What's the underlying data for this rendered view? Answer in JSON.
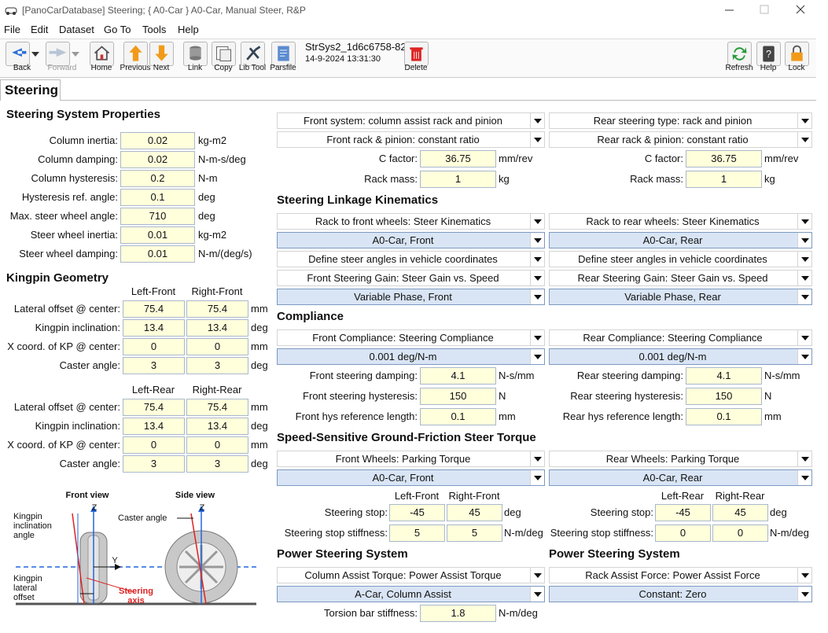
{
  "window": {
    "title": "[PanoCarDatabase] Steering; { A0-Car } A0-Car, Manual Steer, R&P"
  },
  "menu": [
    "File",
    "Edit",
    "Dataset",
    "Go To",
    "Tools",
    "Help"
  ],
  "toolbar": {
    "buttons": [
      "Back",
      "Forward",
      "Home",
      "Previous",
      "Next",
      "Link",
      "Copy",
      "Lib Tool",
      "Parsfile"
    ],
    "dataset_name": "StrSys2_1d6c6758-82",
    "dataset_date": "14-9-2024 13:31:30",
    "delete": "Delete",
    "right_buttons": [
      "Refresh",
      "Help",
      "Lock"
    ]
  },
  "tab": "Steering",
  "left": {
    "system_properties": {
      "title": "Steering System Properties",
      "rows": [
        {
          "label": "Column inertia:",
          "value": 0.02,
          "unit": "kg-m2"
        },
        {
          "label": "Column damping:",
          "value": 0.02,
          "unit": "N-m-s/deg"
        },
        {
          "label": "Column hysteresis:",
          "value": 0.2,
          "unit": "N-m"
        },
        {
          "label": "Hysteresis ref. angle:",
          "value": 0.1,
          "unit": "deg"
        },
        {
          "label": "Max. steer wheel angle:",
          "value": 710,
          "unit": "deg"
        },
        {
          "label": "Steer wheel inertia:",
          "value": 0.01,
          "unit": "kg-m2"
        },
        {
          "label": "Steer wheel damping:",
          "value": 0.01,
          "unit": "N-m/(deg/s)"
        }
      ]
    },
    "kingpin": {
      "title": "Kingpin Geometry",
      "groups": [
        {
          "headers": [
            "Left-Front",
            "Right-Front"
          ],
          "rows": [
            {
              "label": "Lateral offset @ center:",
              "values": [
                75.4,
                75.4
              ],
              "unit": "mm"
            },
            {
              "label": "Kingpin inclination:",
              "values": [
                13.4,
                13.4
              ],
              "unit": "deg"
            },
            {
              "label": "X coord. of KP @ center:",
              "values": [
                0,
                0
              ],
              "unit": "mm"
            },
            {
              "label": "Caster angle:",
              "values": [
                3,
                3
              ],
              "unit": "deg"
            }
          ]
        },
        {
          "headers": [
            "Left-Rear",
            "Right-Rear"
          ],
          "rows": [
            {
              "label": "Lateral offset @ center:",
              "values": [
                75.4,
                75.4
              ],
              "unit": "mm"
            },
            {
              "label": "Kingpin inclination:",
              "values": [
                13.4,
                13.4
              ],
              "unit": "deg"
            },
            {
              "label": "X coord. of KP @ center:",
              "values": [
                0,
                0
              ],
              "unit": "mm"
            },
            {
              "label": "Caster angle:",
              "values": [
                3,
                3
              ],
              "unit": "deg"
            }
          ]
        }
      ]
    },
    "diagram": {
      "front_view": "Front view",
      "side_view": "Side view",
      "inclination": "Kingpin inclination angle",
      "caster": "Caster angle",
      "offset": "Kingpin lateral offset",
      "axis": "Steering axis",
      "z_front": "Z",
      "z_side": "Z",
      "y_front": "Y"
    }
  },
  "right": {
    "sections": [
      {
        "front": {
          "items": [
            {
              "combo": "Front system: column assist rack and pinion"
            },
            {
              "combo": "Front rack & pinion: constant ratio"
            },
            {
              "label": "C factor:",
              "value": 36.75,
              "unit": "mm/rev"
            },
            {
              "label": "Rack mass:",
              "value": 1,
              "unit": "kg"
            }
          ]
        },
        "rear": {
          "items": [
            {
              "combo": "Rear steering type: rack and pinion"
            },
            {
              "combo": "Rear rack & pinion: constant ratio"
            },
            {
              "label": "C factor:",
              "value": 36.75,
              "unit": "mm/rev"
            },
            {
              "label": "Rack mass:",
              "value": 1,
              "unit": "kg"
            }
          ]
        }
      },
      {
        "front": {
          "title": "Steering Linkage Kinematics",
          "items": [
            {
              "combo": "Rack to front wheels: Steer Kinematics"
            },
            {
              "combo": "A0-Car, Front",
              "style": "highlight"
            },
            {
              "combo": "Define steer angles in vehicle coordinates"
            },
            {
              "combo": "Front Steering Gain: Steer Gain vs. Speed"
            },
            {
              "combo": "Variable Phase, Front",
              "style": "highlight"
            }
          ]
        },
        "rear": {
          "items": [
            {
              "combo": "Rack to rear wheels: Steer Kinematics"
            },
            {
              "combo": "A0-Car, Rear",
              "style": "highlight"
            },
            {
              "combo": "Define steer angles in vehicle coordinates"
            },
            {
              "combo": "Rear Steering Gain: Steer Gain vs. Speed"
            },
            {
              "combo": "Variable Phase, Rear",
              "style": "highlight"
            }
          ]
        }
      },
      {
        "front": {
          "title": "Compliance",
          "items": [
            {
              "combo": "Front Compliance: Steering Compliance"
            },
            {
              "combo": "0.001 deg/N-m",
              "style": "highlight"
            },
            {
              "label": "Front steering damping:",
              "value": 4.1,
              "unit": "N-s/mm"
            },
            {
              "label": "Front steering hysteresis:",
              "value": 150,
              "unit": "N"
            },
            {
              "label": "Front hys reference length:",
              "value": 0.1,
              "unit": "mm"
            }
          ]
        },
        "rear": {
          "items": [
            {
              "combo": "Rear Compliance: Steering Compliance"
            },
            {
              "combo": "0.001 deg/N-m",
              "style": "highlight"
            },
            {
              "label": "Rear steering damping:",
              "value": 4.1,
              "unit": "N-s/mm"
            },
            {
              "label": "Rear steering hysteresis:",
              "value": 150,
              "unit": "N"
            },
            {
              "label": "Rear hys reference length:",
              "value": 0.1,
              "unit": "mm"
            }
          ]
        }
      },
      {
        "front": {
          "title": "Speed-Sensitive Ground-Friction Steer Torque",
          "items": [
            {
              "combo": "Front Wheels: Parking Torque"
            },
            {
              "combo": "A0-Car, Front",
              "style": "highlight"
            },
            {
              "headers": [
                "Left-Front",
                "Right-Front"
              ]
            },
            {
              "label": "Steering stop:",
              "values": [
                -45,
                45
              ],
              "unit": "deg"
            },
            {
              "label": "Steering stop stiffness:",
              "values": [
                5,
                5
              ],
              "unit": "N-m/deg"
            }
          ]
        },
        "rear": {
          "items": [
            {
              "combo": "Rear Wheels: Parking Torque"
            },
            {
              "combo": "A0-Car, Rear",
              "style": "highlight"
            },
            {
              "headers": [
                "Left-Rear",
                "Right-Rear"
              ]
            },
            {
              "label": "Steering stop:",
              "values": [
                -45,
                45
              ],
              "unit": "deg"
            },
            {
              "label": "Steering stop stiffness:",
              "values": [
                0,
                0
              ],
              "unit": "N-m/deg"
            }
          ]
        }
      },
      {
        "front": {
          "title": "Power Steering System",
          "items": [
            {
              "combo": "Column Assist Torque: Power Assist Torque"
            },
            {
              "combo": "A-Car, Column Assist",
              "style": "highlight"
            },
            {
              "label": "Torsion bar stiffness:",
              "value": 1.8,
              "unit": "N-m/deg"
            }
          ]
        },
        "rear": {
          "title": "Power Steering System",
          "items": [
            {
              "combo": "Rack Assist Force: Power Assist Force"
            },
            {
              "combo": "Constant: Zero",
              "style": "highlight"
            }
          ]
        }
      }
    ]
  }
}
